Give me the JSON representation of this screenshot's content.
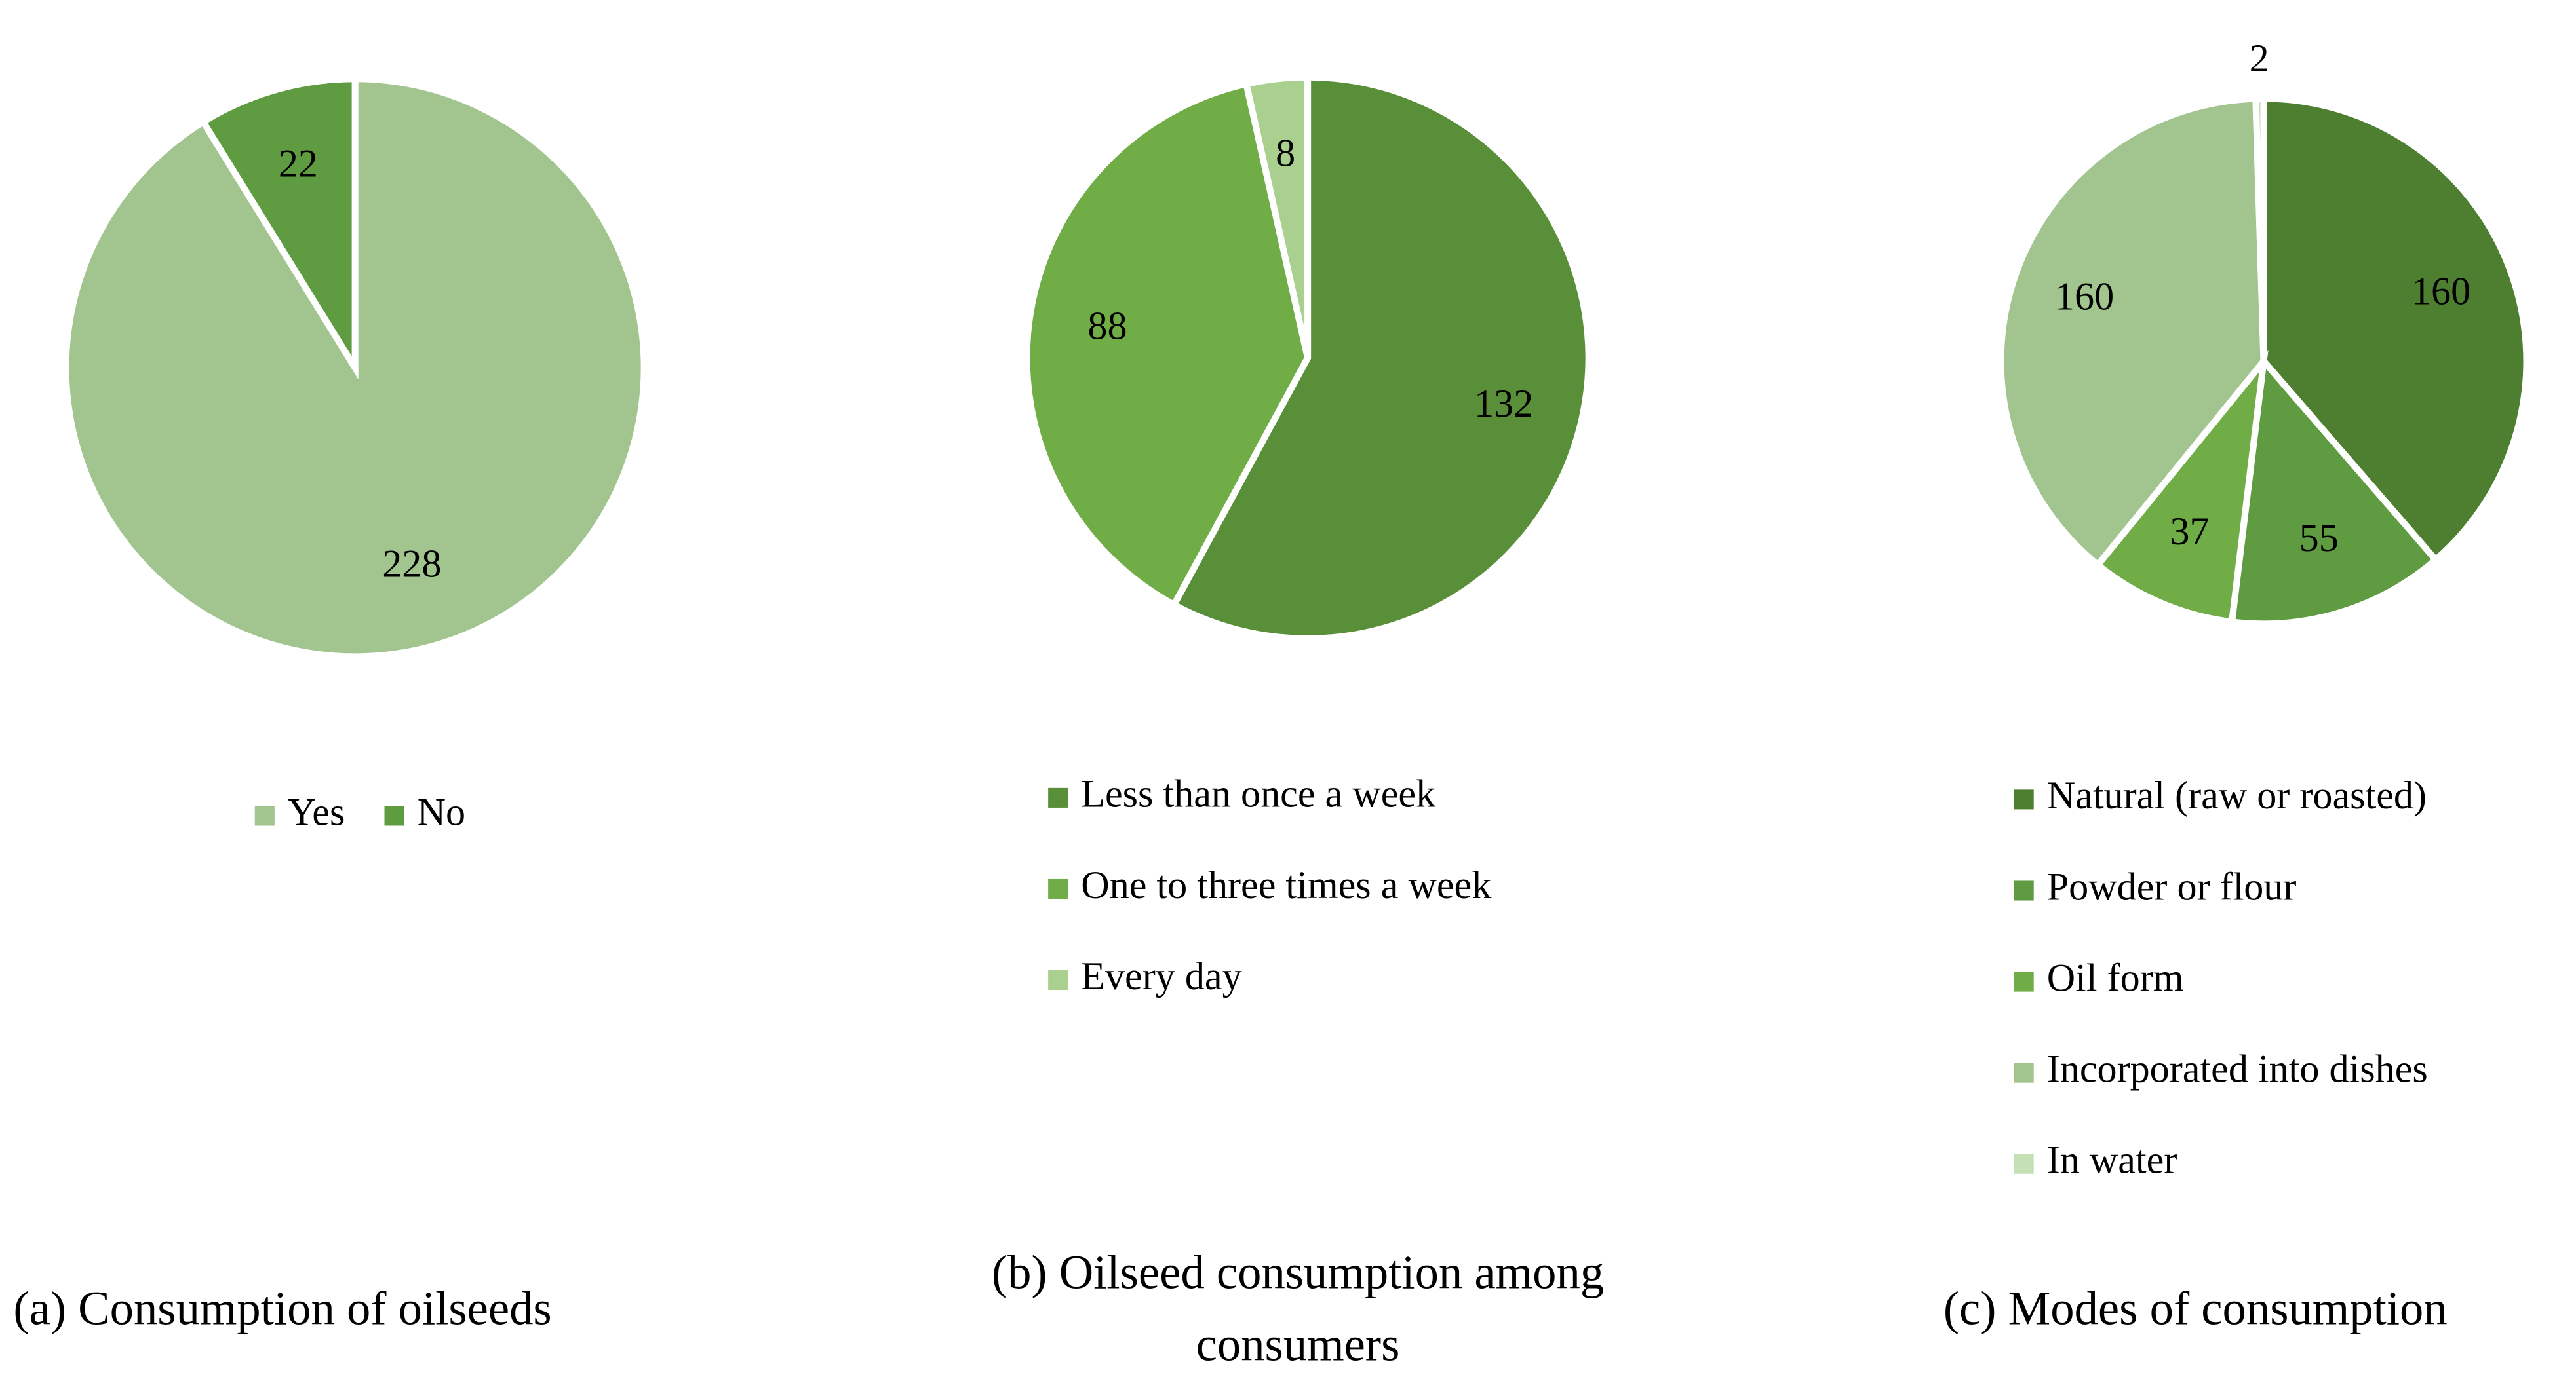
{
  "chart_data": [
    {
      "type": "pie",
      "title": "(a) Consumption of oilseeds",
      "categories": [
        "Yes",
        "No"
      ],
      "values": [
        228,
        22
      ],
      "colors": [
        "#a2c48f",
        "#5f9b40"
      ],
      "legend": "bottom"
    },
    {
      "type": "pie",
      "title": [
        "(b) Oilseed consumption among",
        "consumers"
      ],
      "categories": [
        "Less than once a week",
        "One to three times a week",
        "Every day"
      ],
      "values": [
        132,
        88,
        8
      ],
      "colors": [
        "#5a8f3a",
        "#70ad47",
        "#a9d08e"
      ],
      "legend": "bottom"
    },
    {
      "type": "pie",
      "title": "(c) Modes of consumption",
      "categories": [
        "Natural (raw or roasted)",
        "Powder or flour",
        "Oil form",
        "Incorporated into dishes",
        "In water"
      ],
      "values": [
        160,
        55,
        37,
        160,
        2
      ],
      "colors": [
        "#4e7f31",
        "#5f9b40",
        "#70ad47",
        "#a2c48f",
        "#c5e0b4"
      ],
      "legend": "bottom"
    }
  ]
}
